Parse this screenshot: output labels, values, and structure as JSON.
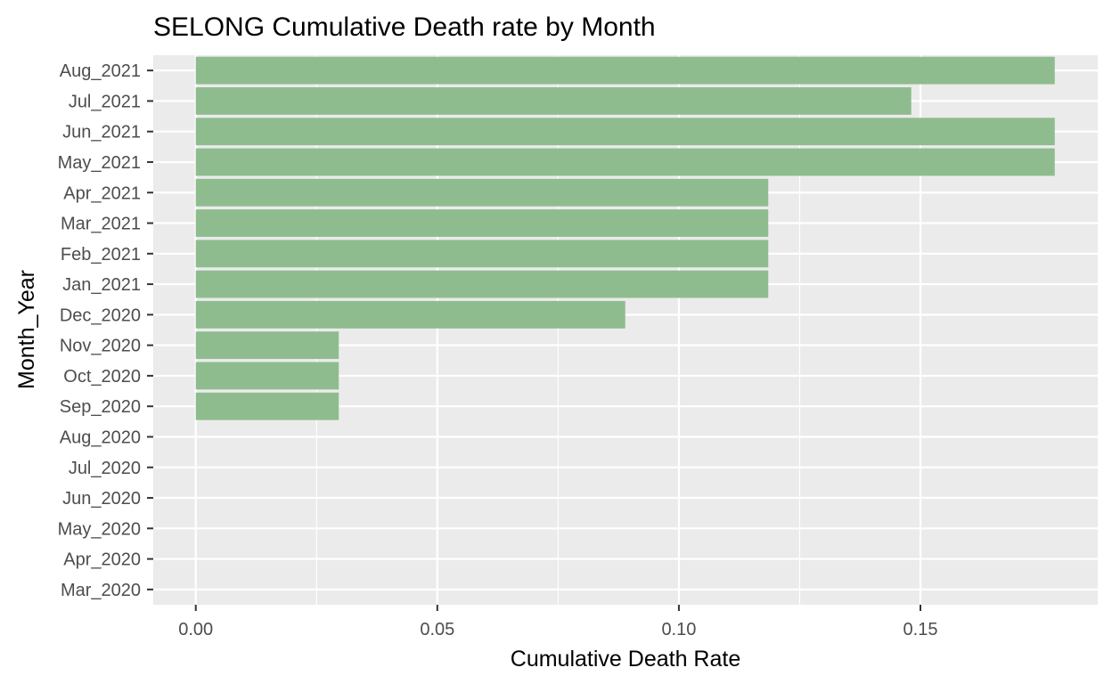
{
  "chart_data": {
    "type": "bar",
    "orientation": "horizontal",
    "title": "SELONG Cumulative Death rate by Month",
    "xlabel": "Cumulative Death Rate",
    "ylabel": "Month_Year",
    "categories": [
      "Mar_2020",
      "Apr_2020",
      "May_2020",
      "Jun_2020",
      "Jul_2020",
      "Aug_2020",
      "Sep_2020",
      "Oct_2020",
      "Nov_2020",
      "Dec_2020",
      "Jan_2021",
      "Feb_2021",
      "Mar_2021",
      "Apr_2021",
      "May_2021",
      "Jun_2021",
      "Jul_2021",
      "Aug_2021"
    ],
    "values": [
      0,
      0,
      0,
      0,
      0,
      0,
      0.0296,
      0.0296,
      0.0296,
      0.0889,
      0.1185,
      0.1185,
      0.1185,
      0.1185,
      0.1778,
      0.1778,
      0.1481,
      0.1778
    ],
    "xlim": [
      -0.0088,
      0.1867
    ],
    "xticks": [
      0.0,
      0.05,
      0.1,
      0.15
    ],
    "xtick_labels": [
      "0.00",
      "0.05",
      "0.10",
      "0.15"
    ],
    "grid": true,
    "legend": "none",
    "colors": {
      "bar": "#8fbc8f",
      "panel": "#ebebeb",
      "grid": "#ffffff"
    }
  }
}
